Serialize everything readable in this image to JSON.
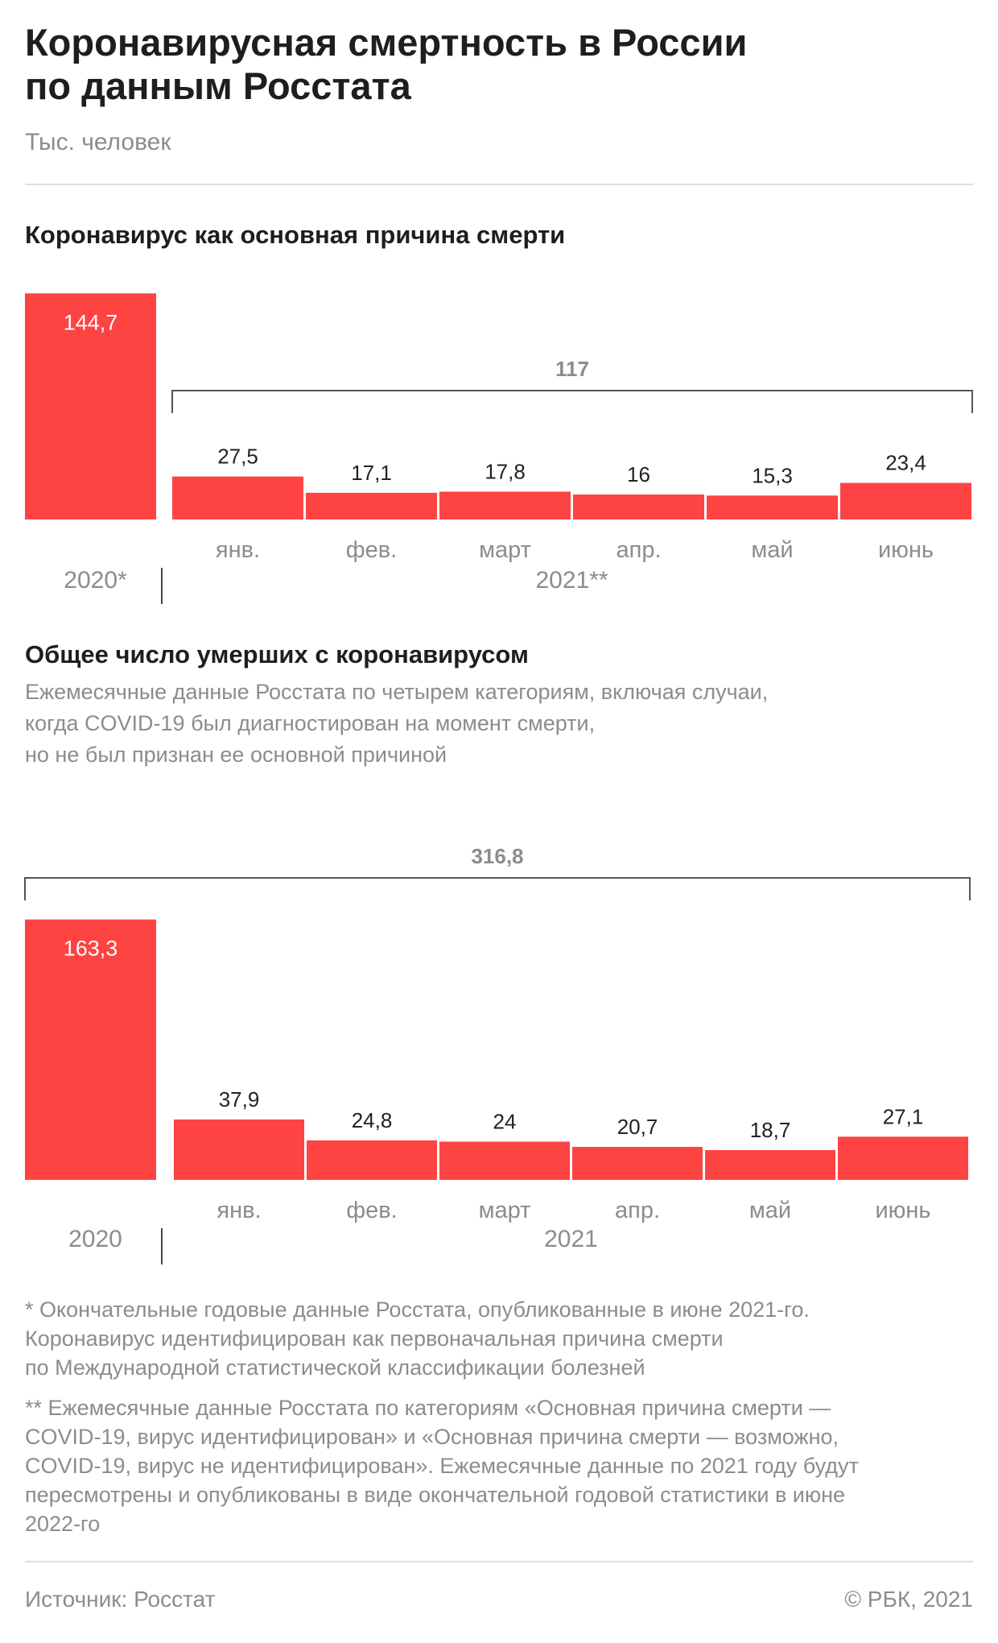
{
  "header": {
    "title_lines": [
      "Коронавирусная смертность в России",
      "по данным Росстата"
    ],
    "unit": "Тыс. человек"
  },
  "colors": {
    "bar": "#fe4343",
    "text_dark": "#222222",
    "text_gray": "#8c8c8c",
    "rule": "#dedede"
  },
  "section1": {
    "title": "Коронавирус как основная причина смерти"
  },
  "section2": {
    "title": "Общее число умерших с коронавирусом",
    "subtitle_lines": [
      "Ежемесячные данные Росстата по четырем категориям, включая случаи,",
      "когда COVID-19 был диагностирован на момент смерти,",
      "но не был признан ее основной причиной"
    ]
  },
  "chart_data": [
    {
      "type": "bar",
      "title": "Коронавирус как основная причина смерти",
      "year_bar": {
        "label": "2020*",
        "value": 144.7,
        "value_label": "144,7"
      },
      "categories": [
        "янв.",
        "фев.",
        "март",
        "апр.",
        "май",
        "июнь"
      ],
      "values": [
        27.5,
        17.1,
        17.8,
        16,
        15.3,
        23.4
      ],
      "value_labels": [
        "27,5",
        "17,1",
        "17,8",
        "16",
        "15,3",
        "23,4"
      ],
      "group_label": "2021**",
      "bracket": {
        "span": "months",
        "value": 117,
        "label": "117"
      }
    },
    {
      "type": "bar",
      "title": "Общее число умерших с коронавирусом",
      "year_bar": {
        "label": "2020",
        "value": 163.3,
        "value_label": "163,3"
      },
      "categories": [
        "янв.",
        "фев.",
        "март",
        "апр.",
        "май",
        "июнь"
      ],
      "values": [
        37.9,
        24.8,
        24,
        20.7,
        18.7,
        27.1
      ],
      "value_labels": [
        "37,9",
        "24,8",
        "24",
        "20,7",
        "18,7",
        "27,1"
      ],
      "group_label": "2021",
      "bracket": {
        "span": "all",
        "value": 316.8,
        "label": "316,8"
      }
    }
  ],
  "footnotes": {
    "note1_lines": [
      "* Окончательные годовые данные Росстата, опубликованные в июне 2021-го.",
      "Коронавирус идентифицирован как первоначальная причина смерти",
      "по Международной статистической классификации болезней"
    ],
    "note2_lines": [
      "** Ежемесячные данные Росстата по категориям «Основная причина смерти —",
      "COVID-19, вирус идентифицирован» и «Основная причина смерти  — возможно,",
      "COVID-19, вирус не идентифицирован». Ежемесячные данные по 2021 году будут",
      "пересмотрены и опубликованы в виде окончательной годовой статистики в июне",
      "2022-го"
    ]
  },
  "footer": {
    "source": "Источник: Росстат",
    "copyright": "© РБК, 2021"
  }
}
